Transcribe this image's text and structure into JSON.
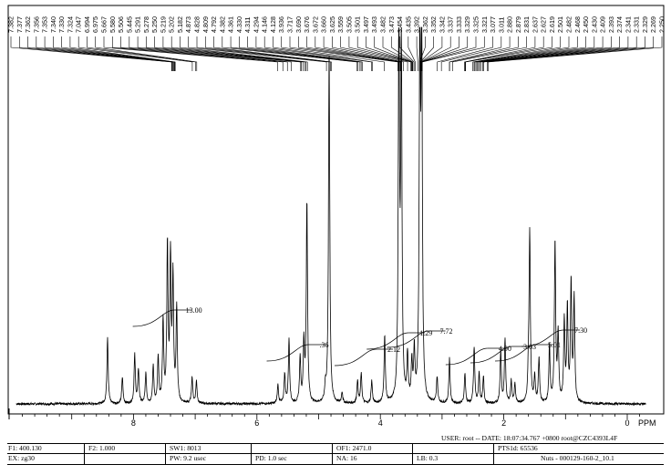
{
  "chart_data": {
    "type": "line",
    "title": "",
    "xlabel": "PPM",
    "ylabel": "",
    "xlim": [
      10,
      -0.3
    ],
    "x_reversed": true,
    "x_ticks": [
      "8",
      "6",
      "4",
      "2",
      "0"
    ],
    "x_tick_values": [
      8,
      6,
      4,
      2,
      0
    ],
    "peak_labels": [
      "7.382",
      "7.377",
      "7.362",
      "7.356",
      "7.353",
      "7.340",
      "7.330",
      "7.324",
      "7.047",
      "6.994",
      "6.975",
      "5.667",
      "5.580",
      "5.506",
      "5.445",
      "5.291",
      "5.278",
      "5.250",
      "5.219",
      "5.202",
      "5.182",
      "4.873",
      "4.828",
      "4.809",
      "4.792",
      "4.382",
      "4.361",
      "4.330",
      "4.311",
      "4.294",
      "4.146",
      "4.128",
      "3.936",
      "3.717",
      "3.690",
      "3.676",
      "3.672",
      "3.660",
      "3.625",
      "3.559",
      "3.505",
      "3.501",
      "3.497",
      "3.493",
      "3.482",
      "3.473",
      "3.454",
      "3.435",
      "3.392",
      "3.362",
      "3.352",
      "3.342",
      "3.337",
      "3.333",
      "3.329",
      "3.325",
      "3.321",
      "3.077",
      "3.011",
      "2.880",
      "2.879",
      "2.831",
      "2.637",
      "2.627",
      "2.619",
      "2.501",
      "2.482",
      "2.468",
      "2.450",
      "2.430",
      "2.409",
      "2.393",
      "2.374",
      "2.341",
      "2.331",
      "2.329",
      "2.269",
      "2.250"
    ],
    "integrals": [
      {
        "label": "13.00",
        "x": 7.45
      },
      {
        "label": ".36",
        "x": 5.28
      },
      {
        "label": "2.12",
        "x": 4.18
      },
      {
        "label": "1.29",
        "x": 3.66
      },
      {
        "label": "7.72",
        "x": 3.33
      },
      {
        "label": "4.90",
        "x": 2.38
      },
      {
        "label": "3.03",
        "x": 1.98
      },
      {
        "label": "5.01",
        "x": 1.58
      },
      {
        "label": "7.30",
        "x": 1.15
      }
    ],
    "spectrum_peaks": [
      {
        "x": 8.42,
        "h": 0.18
      },
      {
        "x": 8.18,
        "h": 0.07
      },
      {
        "x": 7.98,
        "h": 0.13
      },
      {
        "x": 7.92,
        "h": 0.09
      },
      {
        "x": 7.8,
        "h": 0.08
      },
      {
        "x": 7.68,
        "h": 0.1
      },
      {
        "x": 7.6,
        "h": 0.12
      },
      {
        "x": 7.52,
        "h": 0.22
      },
      {
        "x": 7.45,
        "h": 0.42
      },
      {
        "x": 7.4,
        "h": 0.38
      },
      {
        "x": 7.36,
        "h": 0.33
      },
      {
        "x": 7.3,
        "h": 0.25
      },
      {
        "x": 7.05,
        "h": 0.07
      },
      {
        "x": 6.98,
        "h": 0.06
      },
      {
        "x": 5.66,
        "h": 0.05
      },
      {
        "x": 5.55,
        "h": 0.08
      },
      {
        "x": 5.48,
        "h": 0.17
      },
      {
        "x": 5.3,
        "h": 0.12
      },
      {
        "x": 5.24,
        "h": 0.16
      },
      {
        "x": 5.19,
        "h": 0.54
      },
      {
        "x": 4.89,
        "h": 0.04
      },
      {
        "x": 4.83,
        "h": 0.95
      },
      {
        "x": 4.62,
        "h": 0.03
      },
      {
        "x": 4.37,
        "h": 0.06
      },
      {
        "x": 4.31,
        "h": 0.08
      },
      {
        "x": 4.14,
        "h": 0.06
      },
      {
        "x": 3.93,
        "h": 0.18
      },
      {
        "x": 3.7,
        "h": 1.0
      },
      {
        "x": 3.66,
        "h": 0.95
      },
      {
        "x": 3.56,
        "h": 0.12
      },
      {
        "x": 3.49,
        "h": 0.1
      },
      {
        "x": 3.45,
        "h": 0.13
      },
      {
        "x": 3.36,
        "h": 1.0
      },
      {
        "x": 3.33,
        "h": 0.98
      },
      {
        "x": 3.08,
        "h": 0.07
      },
      {
        "x": 2.88,
        "h": 0.12
      },
      {
        "x": 2.63,
        "h": 0.08
      },
      {
        "x": 2.48,
        "h": 0.15
      },
      {
        "x": 2.4,
        "h": 0.08
      },
      {
        "x": 2.33,
        "h": 0.07
      },
      {
        "x": 2.05,
        "h": 0.14
      },
      {
        "x": 1.98,
        "h": 0.17
      },
      {
        "x": 1.88,
        "h": 0.06
      },
      {
        "x": 1.82,
        "h": 0.05
      },
      {
        "x": 1.6,
        "h": 0.07
      },
      {
        "x": 1.58,
        "h": 0.45
      },
      {
        "x": 1.5,
        "h": 0.07
      },
      {
        "x": 1.43,
        "h": 0.12
      },
      {
        "x": 1.26,
        "h": 0.15
      },
      {
        "x": 1.17,
        "h": 0.43
      },
      {
        "x": 1.12,
        "h": 0.18
      },
      {
        "x": 1.02,
        "h": 0.22
      },
      {
        "x": 0.97,
        "h": 0.25
      },
      {
        "x": 0.91,
        "h": 0.32
      },
      {
        "x": 0.86,
        "h": 0.28
      }
    ]
  },
  "footer": {
    "user_line": "USER: root -- DATE: 18:07:34.767 +0800  root@CZC4393L4F",
    "f1": "F1: 400.130",
    "f2": "F2: 1.000",
    "sw1": "SW1: 8013",
    "of1": "OF1: 2471.0",
    "pts1d": "PTS1d: 65536",
    "ex": "EX: zg30",
    "pw": "PW: 9.2  usec",
    "pd": "PD: 1.0  sec",
    "na": "NA: 16",
    "lb": "LB: 0.3",
    "nuts": "Nuts - 000129-160-2_10.1"
  }
}
